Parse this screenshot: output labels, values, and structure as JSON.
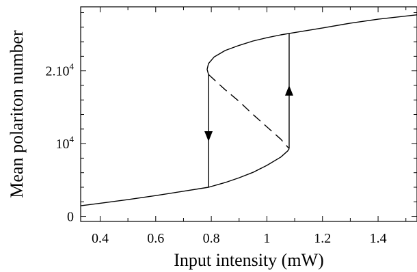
{
  "chart_data": {
    "type": "line",
    "xlabel": "Input intensity (mW)",
    "ylabel": "Mean polariton number",
    "xlim": [
      0.33,
      1.54
    ],
    "ylim": [
      -700,
      28800
    ],
    "x_ticks": [
      {
        "value": 0.4,
        "label": "0.4"
      },
      {
        "value": 0.6,
        "label": "0.6"
      },
      {
        "value": 0.8,
        "label": "0.8"
      },
      {
        "value": 1.0,
        "label": "1"
      },
      {
        "value": 1.2,
        "label": "1.2"
      },
      {
        "value": 1.4,
        "label": "1.4"
      }
    ],
    "y_ticks": [
      {
        "value": 0,
        "label": "0",
        "sup": ""
      },
      {
        "value": 10000,
        "label": "10",
        "sup": "4"
      },
      {
        "value": 20000,
        "label": "2.10",
        "sup": "4"
      }
    ],
    "grid": false,
    "series": [
      {
        "style": "solid",
        "points": [
          [
            0.33,
            1450
          ],
          [
            0.4,
            1800
          ],
          [
            0.5,
            2300
          ],
          [
            0.6,
            2850
          ],
          [
            0.7,
            3450
          ],
          [
            0.79,
            4000
          ],
          [
            0.85,
            4650
          ],
          [
            0.9,
            5300
          ],
          [
            0.95,
            6050
          ],
          [
            1.0,
            7000
          ],
          [
            1.05,
            8150
          ],
          [
            1.075,
            9000
          ],
          [
            1.08,
            9300
          ]
        ]
      },
      {
        "style": "solid",
        "points": [
          [
            0.79,
            19500
          ],
          [
            0.785,
            20200
          ],
          [
            0.79,
            21000
          ],
          [
            0.81,
            21900
          ],
          [
            0.85,
            22800
          ],
          [
            0.9,
            23500
          ],
          [
            0.95,
            24100
          ],
          [
            1.0,
            24550
          ],
          [
            1.05,
            24950
          ],
          [
            1.08,
            25150
          ],
          [
            1.2,
            25900
          ],
          [
            1.3,
            26550
          ],
          [
            1.4,
            27100
          ],
          [
            1.54,
            27700
          ]
        ]
      },
      {
        "style": "dashed",
        "points": [
          [
            0.79,
            19500
          ],
          [
            0.85,
            17400
          ],
          [
            0.9,
            15800
          ],
          [
            0.95,
            14000
          ],
          [
            1.0,
            12300
          ],
          [
            1.05,
            10600
          ],
          [
            1.08,
            9300
          ]
        ]
      }
    ],
    "arrows": [
      {
        "x": 0.79,
        "from": 19500,
        "to": 4000,
        "direction": "down",
        "head_at": 11000
      },
      {
        "x": 1.08,
        "from": 9300,
        "to": 25150,
        "direction": "up",
        "head_at": 17300
      }
    ]
  }
}
